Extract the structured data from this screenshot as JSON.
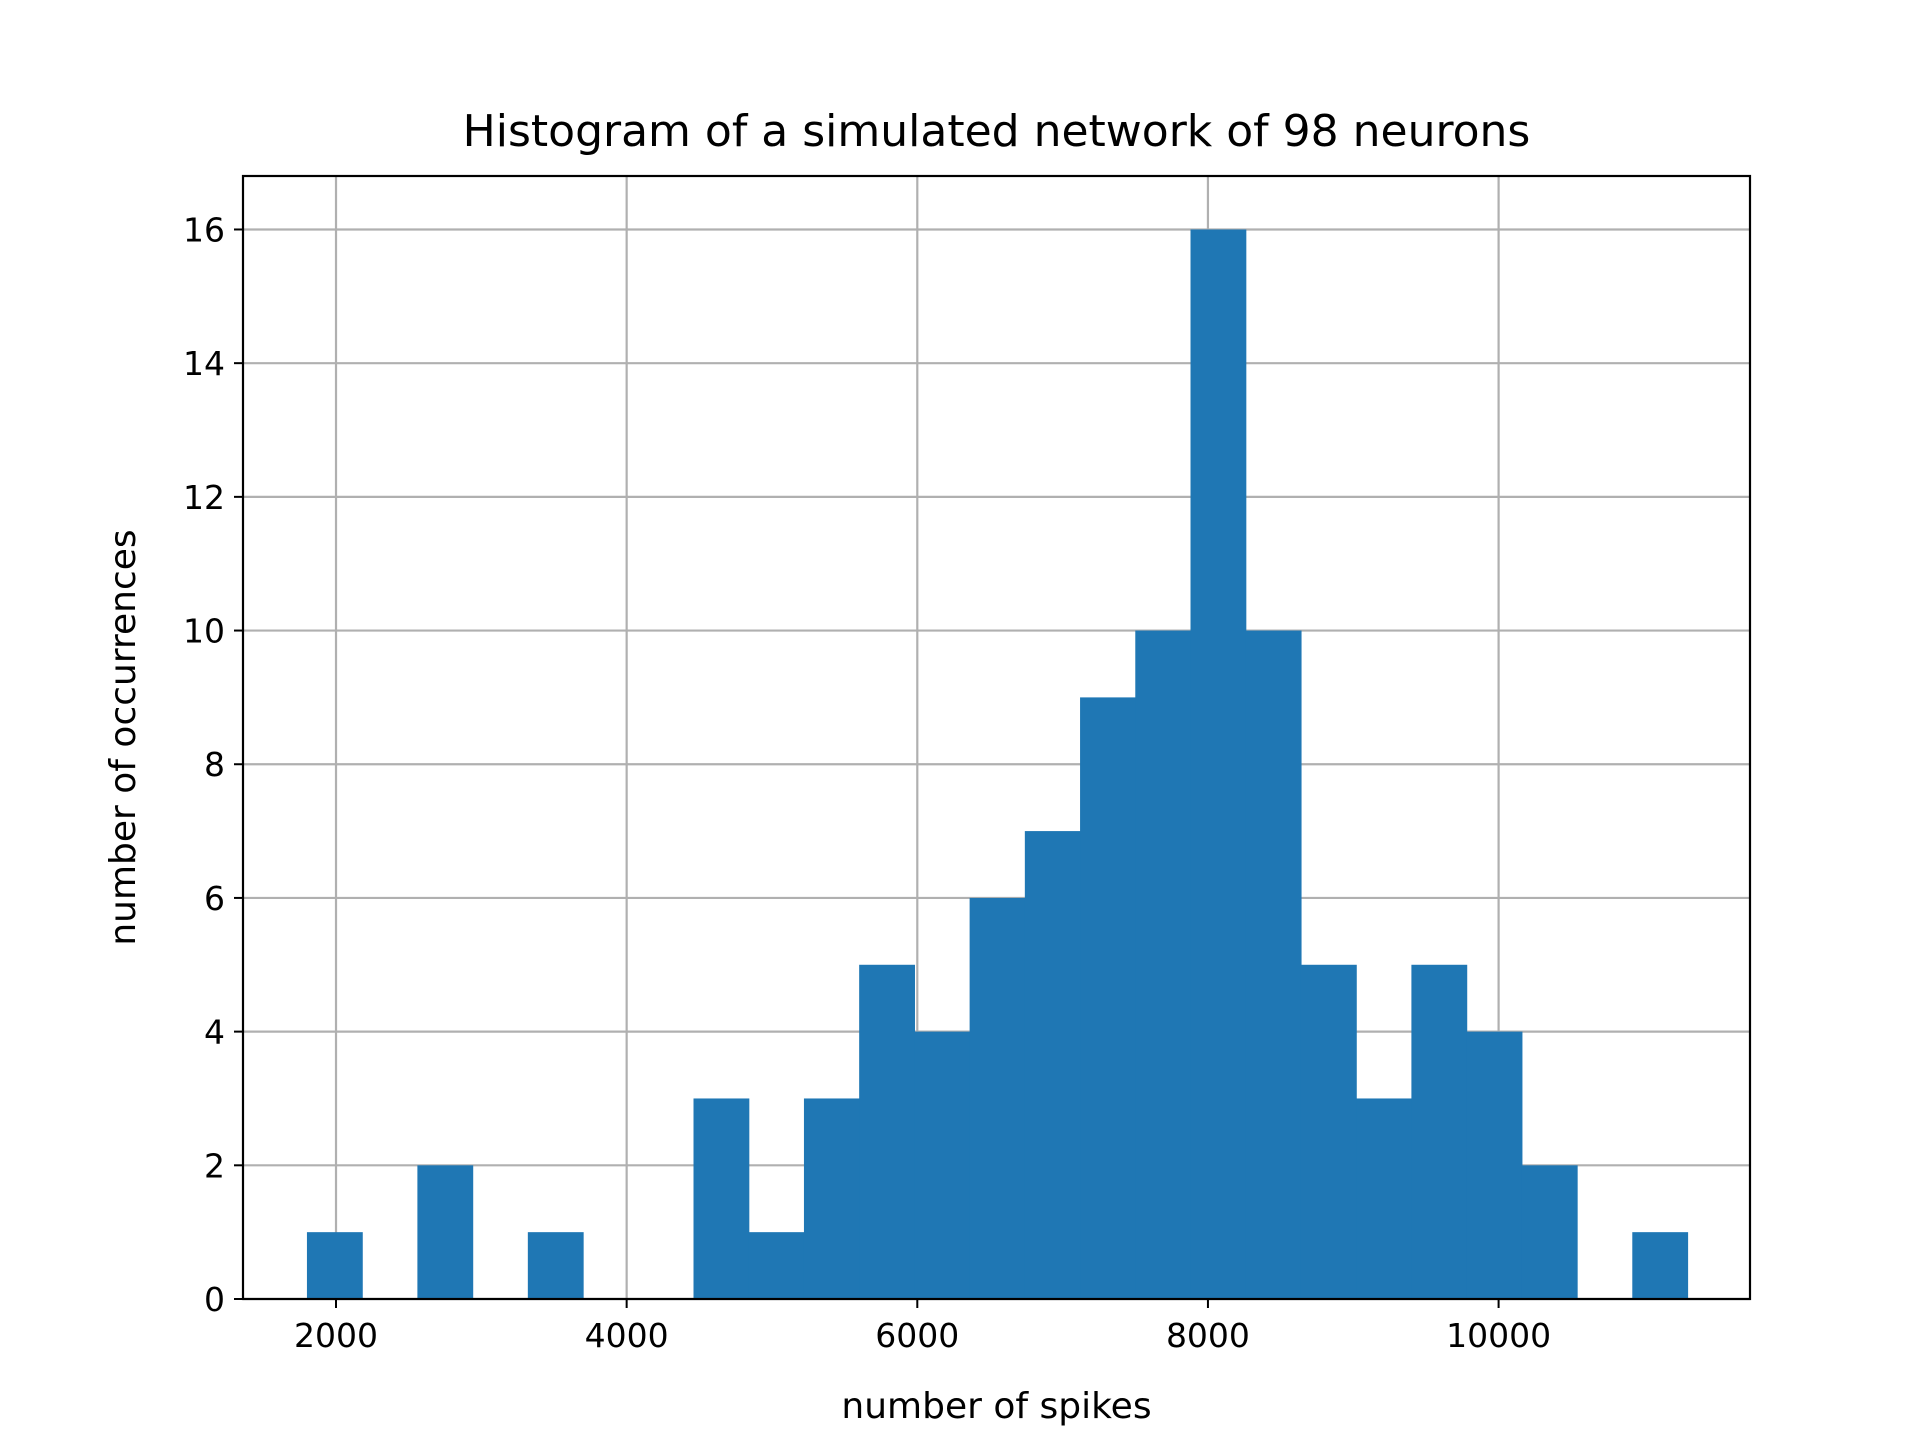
{
  "chart_data": {
    "type": "bar",
    "title": "Histogram of a simulated network of 98 neurons",
    "xlabel": "number of spikes",
    "ylabel": "number of occurrences",
    "xlim": [
      1360,
      11730
    ],
    "ylim": [
      0,
      16.8
    ],
    "grid": true,
    "bar_color": "#1f77b4",
    "bin_edges": [
      1800,
      2180,
      2560,
      2940,
      3320,
      3700,
      4080,
      4460,
      4840,
      5220,
      5600,
      5980,
      6360,
      6740,
      7120,
      7500,
      7880,
      8260,
      8640,
      9020,
      9400,
      9780,
      10160,
      10540,
      10920,
      11300
    ],
    "values": [
      1,
      0,
      2,
      0,
      1,
      0,
      0,
      3,
      1,
      3,
      5,
      4,
      6,
      7,
      9,
      10,
      16,
      10,
      5,
      3,
      5,
      4,
      2,
      0,
      1
    ],
    "x_ticks": [
      2000,
      4000,
      6000,
      8000,
      10000
    ],
    "x_tick_labels": [
      "2000",
      "4000",
      "6000",
      "8000",
      "10000"
    ],
    "y_ticks": [
      0,
      2,
      4,
      6,
      8,
      10,
      12,
      14,
      16
    ],
    "y_tick_labels": [
      "0",
      "2",
      "4",
      "6",
      "8",
      "10",
      "12",
      "14",
      "16"
    ]
  }
}
